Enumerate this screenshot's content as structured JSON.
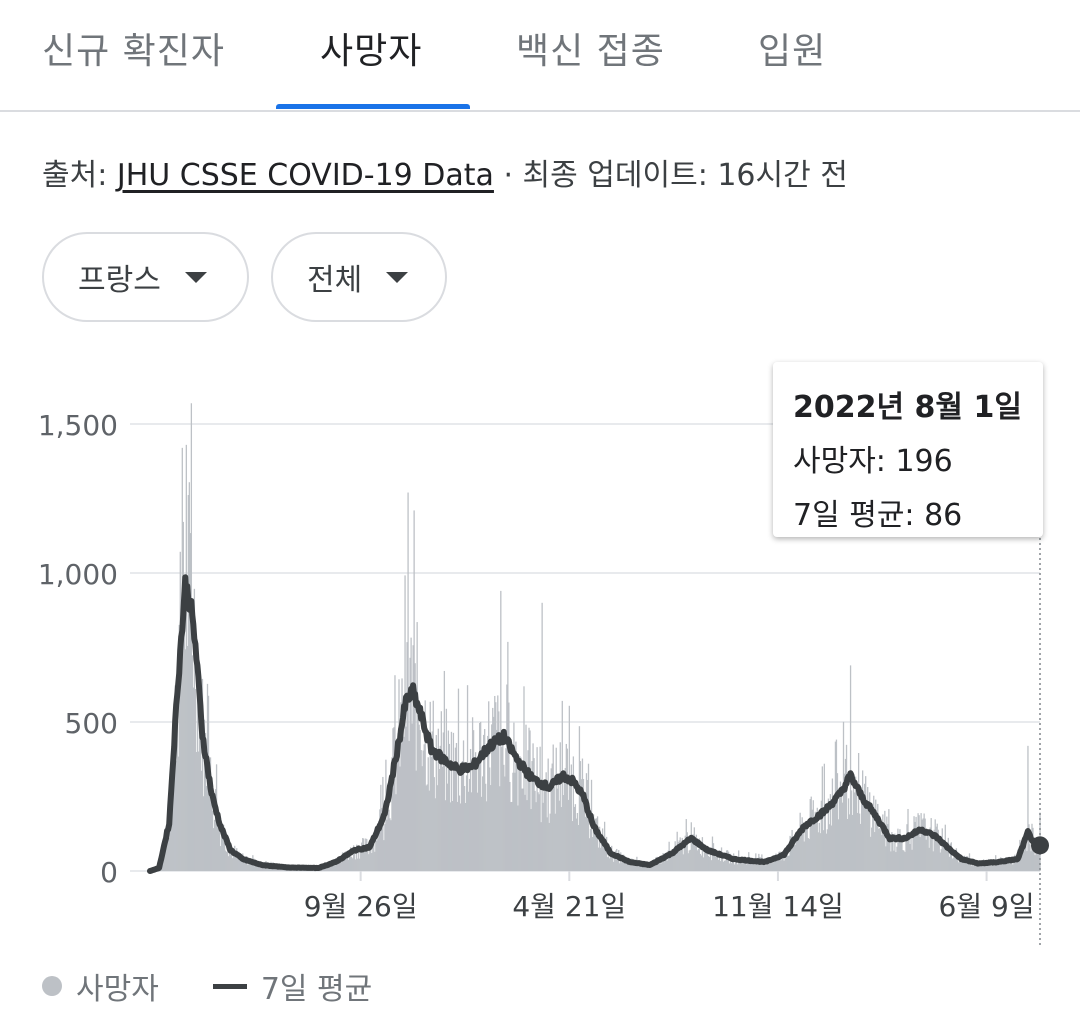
{
  "tabs": [
    {
      "label": "신규 확진자",
      "active": false
    },
    {
      "label": "사망자",
      "active": true
    },
    {
      "label": "백신 접종",
      "active": false
    },
    {
      "label": "입원",
      "active": false
    }
  ],
  "source": {
    "prefix": "출처: ",
    "link": "JHU CSSE COVID-19 Data",
    "suffix": " · 최종 업데이트: 16시간 전"
  },
  "filters": {
    "country": "프랑스",
    "range": "전체"
  },
  "tooltip": {
    "date": "2022년 8월 1일",
    "deaths_label": "사망자:",
    "deaths_value": "196",
    "avg_label": "7일 평균:",
    "avg_value": "86"
  },
  "legend": {
    "bars": "사망자",
    "line": "7일 평균"
  },
  "colors": {
    "bars": "#bdc1c6",
    "line": "#3c4043",
    "accent": "#1a73e8",
    "grid": "#e8eaed"
  },
  "chart_data": {
    "type": "bar",
    "y_ticks": [
      "0",
      "500",
      "1,000",
      "1,500"
    ],
    "y_tick_values": [
      0,
      500,
      1000,
      1500
    ],
    "ylim": [
      0,
      1500
    ],
    "x_tick_labels": [
      "9월 26일",
      "4월 21일",
      "11월 14일",
      "6월 9일"
    ],
    "x_tick_dates": [
      "2020-09-26",
      "2021-04-21",
      "2021-11-14",
      "2022-06-09"
    ],
    "x_range": [
      "2020-03-01",
      "2022-08-01"
    ],
    "grid": true,
    "legend_position": "bottom-left",
    "series": [
      {
        "name": "7일 평균",
        "kind": "line",
        "points": [
          [
            "2020-03-01",
            0
          ],
          [
            "2020-03-10",
            10
          ],
          [
            "2020-03-20",
            160
          ],
          [
            "2020-03-28",
            600
          ],
          [
            "2020-04-05",
            960
          ],
          [
            "2020-04-10",
            900
          ],
          [
            "2020-04-15",
            760
          ],
          [
            "2020-04-22",
            460
          ],
          [
            "2020-05-01",
            260
          ],
          [
            "2020-05-10",
            150
          ],
          [
            "2020-05-20",
            70
          ],
          [
            "2020-06-01",
            40
          ],
          [
            "2020-06-20",
            20
          ],
          [
            "2020-07-15",
            12
          ],
          [
            "2020-08-15",
            10
          ],
          [
            "2020-09-01",
            30
          ],
          [
            "2020-09-20",
            70
          ],
          [
            "2020-10-05",
            80
          ],
          [
            "2020-10-20",
            190
          ],
          [
            "2020-11-01",
            400
          ],
          [
            "2020-11-10",
            570
          ],
          [
            "2020-11-17",
            600
          ],
          [
            "2020-11-25",
            520
          ],
          [
            "2020-12-05",
            410
          ],
          [
            "2020-12-15",
            380
          ],
          [
            "2021-01-01",
            340
          ],
          [
            "2021-01-15",
            350
          ],
          [
            "2021-02-01",
            420
          ],
          [
            "2021-02-15",
            450
          ],
          [
            "2021-03-01",
            370
          ],
          [
            "2021-03-15",
            310
          ],
          [
            "2021-04-01",
            280
          ],
          [
            "2021-04-15",
            320
          ],
          [
            "2021-04-25",
            300
          ],
          [
            "2021-05-05",
            250
          ],
          [
            "2021-05-15",
            150
          ],
          [
            "2021-06-01",
            60
          ],
          [
            "2021-06-20",
            30
          ],
          [
            "2021-07-10",
            20
          ],
          [
            "2021-08-01",
            60
          ],
          [
            "2021-08-20",
            110
          ],
          [
            "2021-09-05",
            70
          ],
          [
            "2021-10-01",
            40
          ],
          [
            "2021-11-01",
            30
          ],
          [
            "2021-11-20",
            55
          ],
          [
            "2021-12-10",
            150
          ],
          [
            "2021-12-30",
            200
          ],
          [
            "2022-01-15",
            260
          ],
          [
            "2022-01-25",
            320
          ],
          [
            "2022-02-05",
            250
          ],
          [
            "2022-02-20",
            180
          ],
          [
            "2022-03-05",
            110
          ],
          [
            "2022-03-20",
            110
          ],
          [
            "2022-04-05",
            140
          ],
          [
            "2022-04-20",
            115
          ],
          [
            "2022-05-01",
            80
          ],
          [
            "2022-05-15",
            40
          ],
          [
            "2022-06-01",
            25
          ],
          [
            "2022-06-20",
            30
          ],
          [
            "2022-07-10",
            40
          ],
          [
            "2022-07-20",
            130
          ],
          [
            "2022-07-25",
            100
          ],
          [
            "2022-08-01",
            86
          ]
        ]
      },
      {
        "name": "사망자",
        "kind": "bar",
        "note": "daily values follow the 7-day average with daily variation; selected day 2022-08-01 = 196",
        "peaks": [
          [
            "2020-04-02",
            1420
          ],
          [
            "2020-04-06",
            1430
          ],
          [
            "2020-11-12",
            1270
          ],
          [
            "2020-11-18",
            1210
          ],
          [
            "2021-02-12",
            940
          ],
          [
            "2021-03-25",
            900
          ],
          [
            "2022-01-25",
            690
          ],
          [
            "2022-07-20",
            420
          ],
          [
            "2022-08-01",
            196
          ]
        ]
      }
    ]
  }
}
